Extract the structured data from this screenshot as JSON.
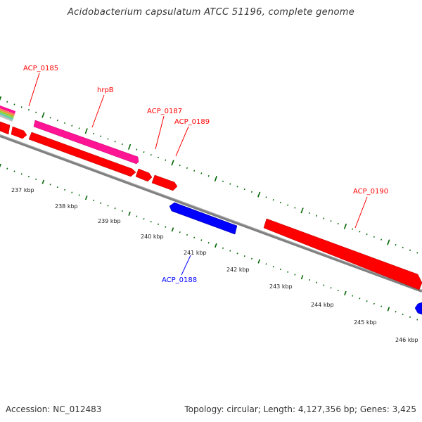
{
  "title": "Acidobacterium capsulatum ATCC 51196, complete genome",
  "footer": {
    "accession": "Accession: NC_012483",
    "summary": "Topology: circular; Length: 4,127,356 bp; Genes: 3,425"
  },
  "colors": {
    "forward_gene": "#ff0000",
    "reverse_gene": "#0000ff",
    "rna_gene": "#ff1493",
    "backbone": "#808080",
    "tick": "#006400"
  },
  "gene_labels": {
    "acp0185": "ACP_0185",
    "hrpb": "hrpB",
    "acp0187": "ACP_0187",
    "acp0189": "ACP_0189",
    "acp0190": "ACP_0190",
    "acp0188": "ACP_0188"
  },
  "scale_labels": [
    "237 kbp",
    "238 kbp",
    "239 kbp",
    "240 kbp",
    "241 kbp",
    "242 kbp",
    "243 kbp",
    "244 kbp",
    "245 kbp",
    "246 kbp"
  ]
}
